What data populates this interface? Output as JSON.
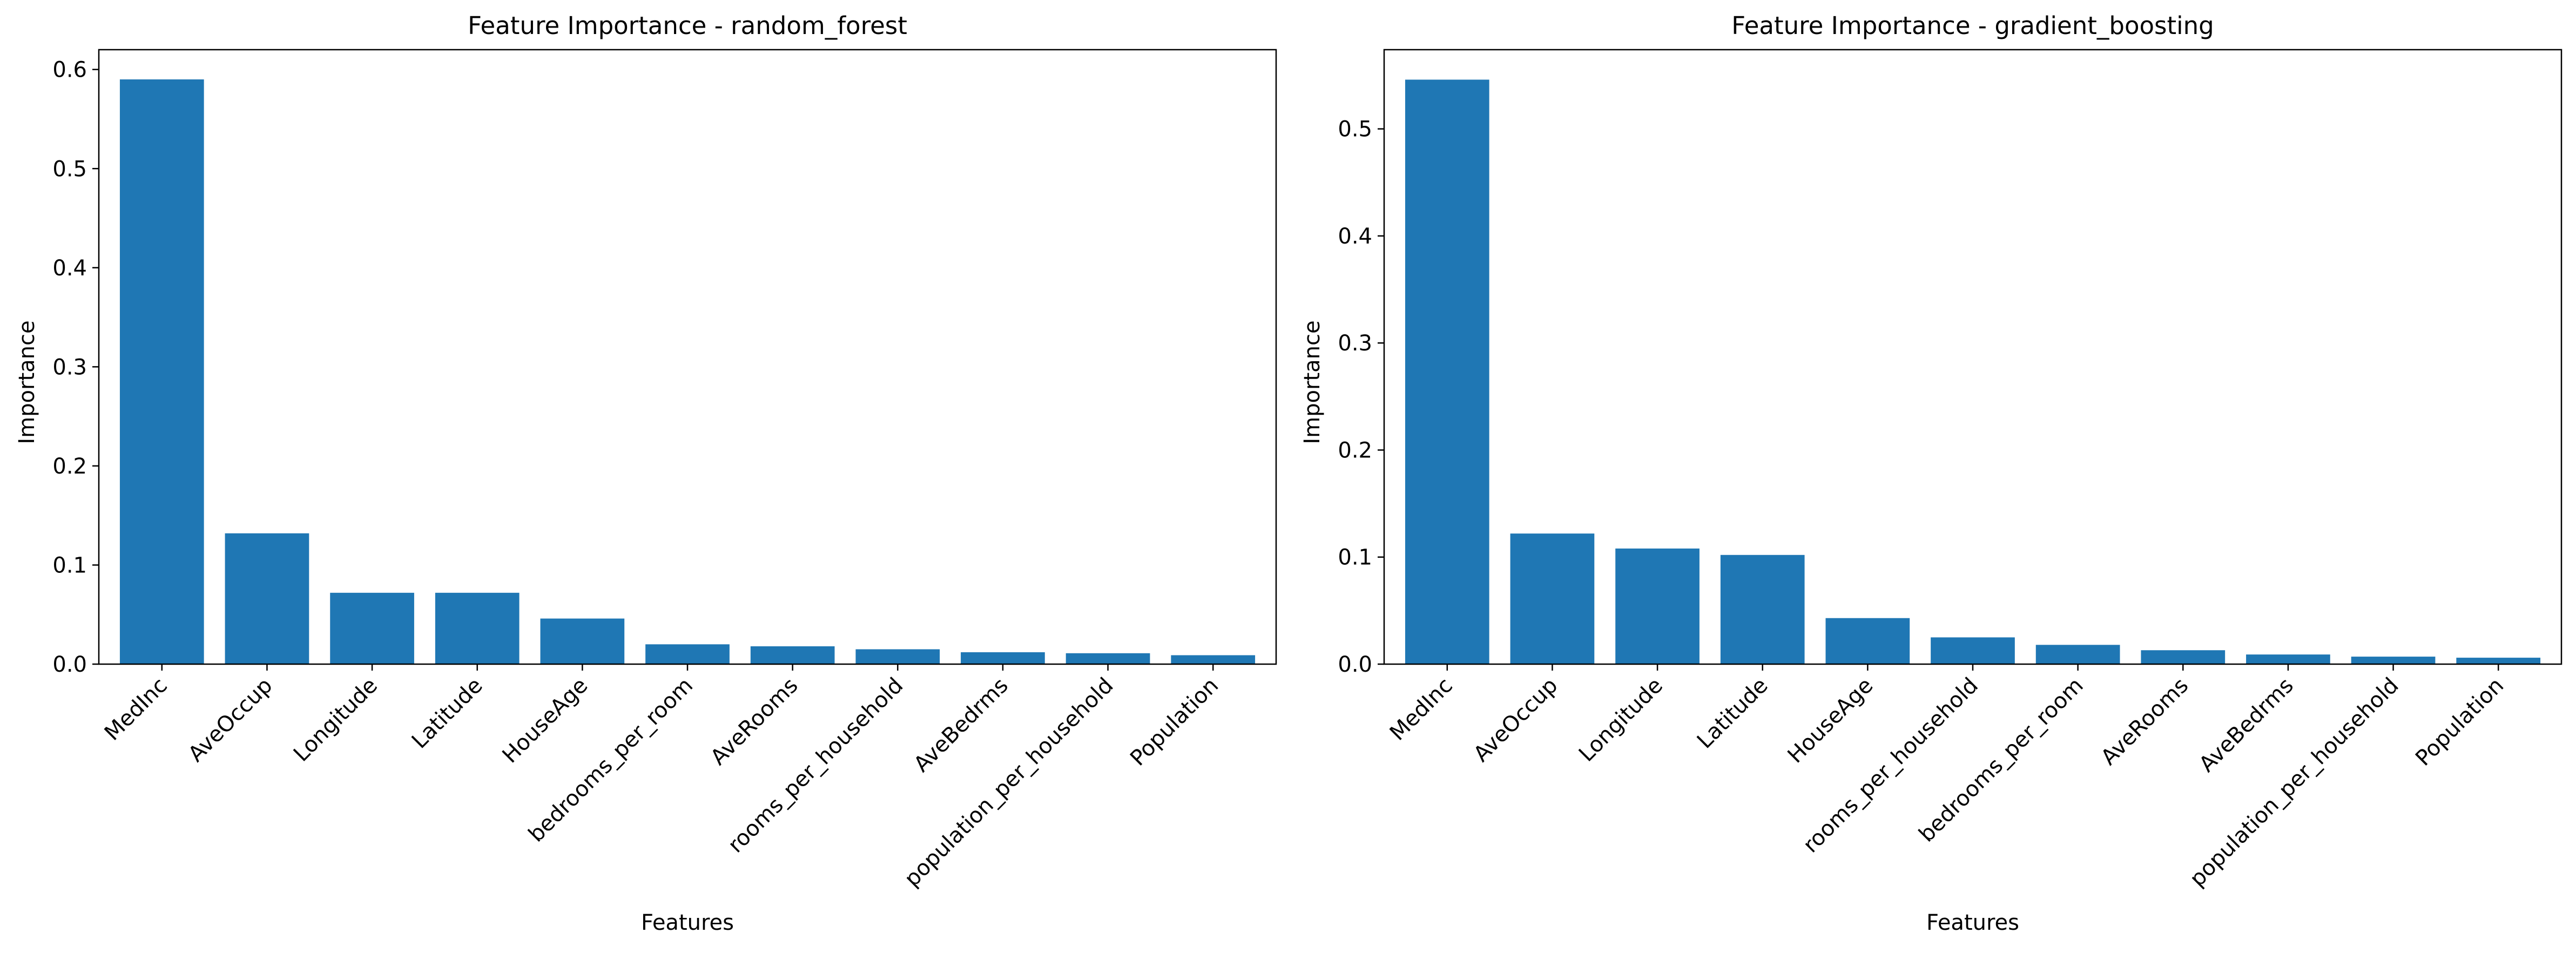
{
  "colors": {
    "bar": "#1f77b4",
    "axis": "#000000",
    "background": "#ffffff"
  },
  "chart_data": [
    {
      "type": "bar",
      "title": "Feature Importance - random_forest",
      "xlabel": "Features",
      "ylabel": "Importance",
      "categories": [
        "MedInc",
        "AveOccup",
        "Longitude",
        "Latitude",
        "HouseAge",
        "bedrooms_per_room",
        "AveRooms",
        "rooms_per_household",
        "AveBedrms",
        "population_per_household",
        "Population"
      ],
      "values": [
        0.59,
        0.132,
        0.072,
        0.072,
        0.046,
        0.02,
        0.018,
        0.015,
        0.012,
        0.011,
        0.009
      ],
      "ylim": [
        0,
        0.62
      ],
      "yticks": [
        0.0,
        0.1,
        0.2,
        0.3,
        0.4,
        0.5,
        0.6
      ],
      "ytick_labels": [
        "0.0",
        "0.1",
        "0.2",
        "0.3",
        "0.4",
        "0.5",
        "0.6"
      ],
      "grid": false,
      "legend": "none"
    },
    {
      "type": "bar",
      "title": "Feature Importance - gradient_boosting",
      "xlabel": "Features",
      "ylabel": "Importance",
      "categories": [
        "MedInc",
        "AveOccup",
        "Longitude",
        "Latitude",
        "HouseAge",
        "rooms_per_household",
        "bedrooms_per_room",
        "AveRooms",
        "AveBedrms",
        "population_per_household",
        "Population"
      ],
      "values": [
        0.546,
        0.122,
        0.108,
        0.102,
        0.043,
        0.025,
        0.018,
        0.013,
        0.009,
        0.007,
        0.006
      ],
      "ylim": [
        0,
        0.574
      ],
      "yticks": [
        0.0,
        0.1,
        0.2,
        0.3,
        0.4,
        0.5
      ],
      "ytick_labels": [
        "0.0",
        "0.1",
        "0.2",
        "0.3",
        "0.4",
        "0.5"
      ],
      "grid": false,
      "legend": "none"
    }
  ]
}
